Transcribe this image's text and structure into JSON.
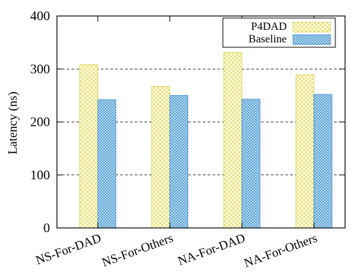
{
  "chart_data": {
    "type": "bar",
    "title": "",
    "xlabel": "",
    "ylabel": "Latency (ns)",
    "ylim": [
      0,
      400
    ],
    "yticks": [
      0,
      100,
      200,
      300,
      400
    ],
    "grid": true,
    "legend_position": "top-right",
    "categories": [
      "NS-For-DAD",
      "NS-For-Others",
      "NA-For-DAD",
      "NA-For-Others"
    ],
    "series": [
      {
        "name": "P4DAD",
        "values": [
          308,
          267,
          331,
          289
        ],
        "color": "#e8e060",
        "pattern": "crosshatch"
      },
      {
        "name": "Baseline",
        "values": [
          242,
          250,
          243,
          252
        ],
        "color": "#5aa8d8",
        "pattern": "crosshatch"
      }
    ]
  }
}
